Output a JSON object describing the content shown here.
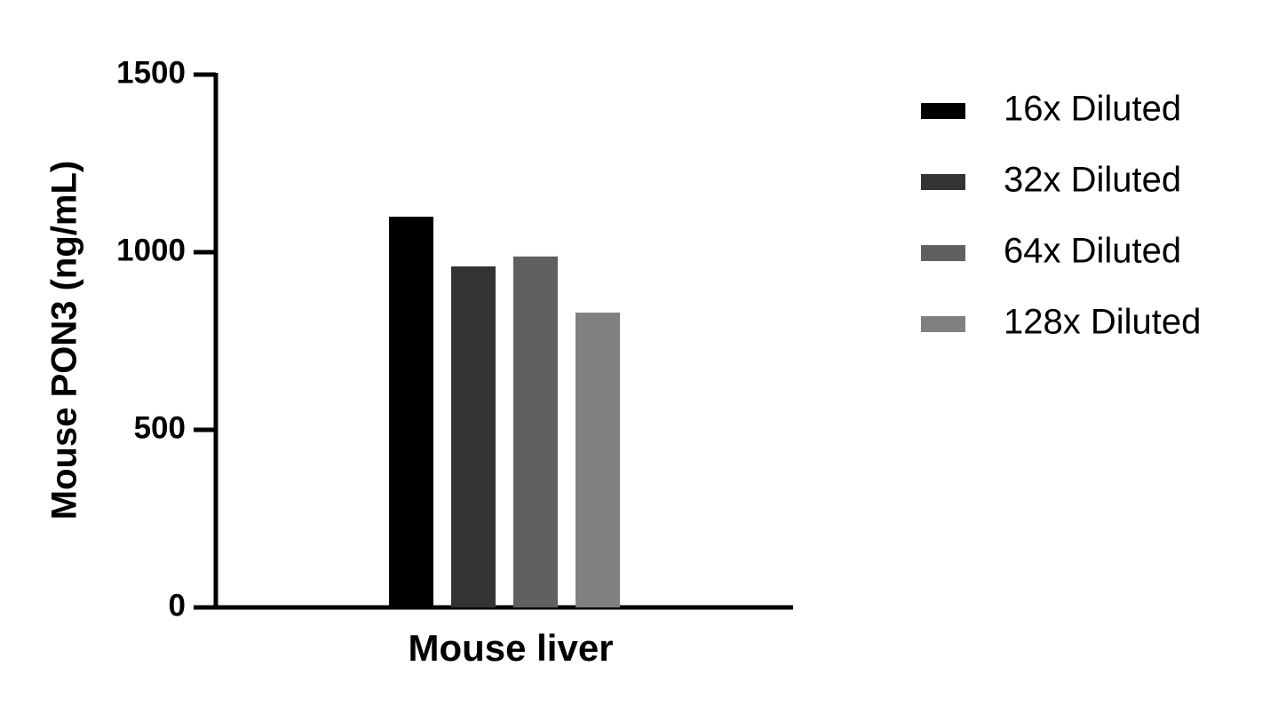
{
  "chart_data": {
    "type": "bar",
    "y_label": "Mouse PON3 (ng/mL)",
    "categories": [
      "Mouse liver"
    ],
    "series": [
      {
        "name": "16x Diluted",
        "color": "#000000",
        "values": [
          1100
        ]
      },
      {
        "name": "32x Diluted",
        "color": "#333333",
        "values": [
          960
        ]
      },
      {
        "name": "64x Diluted",
        "color": "#606060",
        "values": [
          988
        ]
      },
      {
        "name": "128x Diluted",
        "color": "#808080",
        "values": [
          830
        ]
      }
    ],
    "ylim": [
      0,
      1500
    ],
    "yticks": [
      0,
      500,
      1000,
      1500
    ],
    "legend": "right"
  }
}
